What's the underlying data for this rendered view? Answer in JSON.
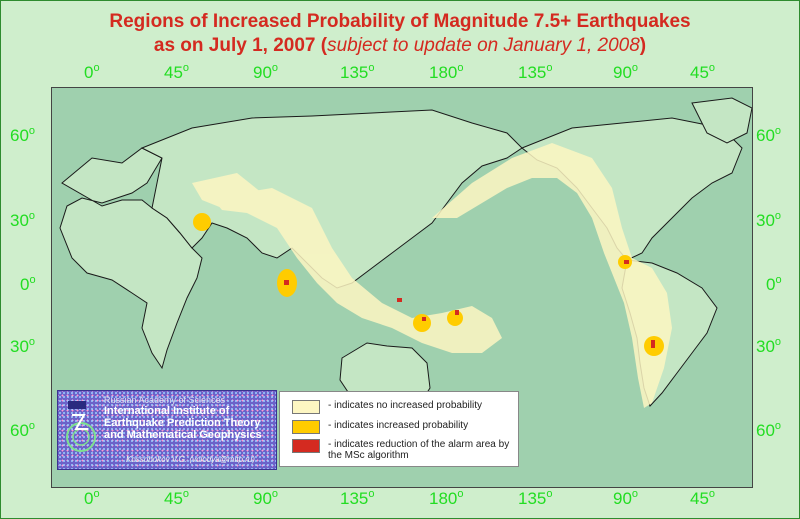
{
  "title": {
    "line1": "Regions of Increased Probability of Magnitude 7.5+ Earthquakes",
    "line2_main": "as on July 1, 2007 (",
    "line2_note": "subject to update on January 1, 2008",
    "line2_end": ")"
  },
  "longitude_labels": [
    "0",
    "45",
    "90",
    "135",
    "180",
    "135",
    "90",
    "45"
  ],
  "latitude_labels": [
    "60",
    "30",
    "0",
    "30",
    "60"
  ],
  "degree_symbol": "o",
  "institute": {
    "academy": "Russian Academy of Sciences",
    "name_line1": "International Institute of",
    "name_line2": "Earthquake Prediction Theory",
    "name_line3": "and Mathematical Geophysics",
    "author": "Kossobokov V.G. (volodya@mitp.ru)"
  },
  "legend": {
    "items": [
      {
        "label": "- indicates no increased probability",
        "color": "#fdf6c2"
      },
      {
        "label": "- indicates increased probability",
        "color": "#ffcc00"
      },
      {
        "label": "- indicates reduction of the alarm area by the MSc algorithm",
        "color": "#d42a20"
      }
    ]
  },
  "colors": {
    "ocean": "#9fd0ae",
    "land": "#c4e6c4",
    "no_increase": "#fdf6c2",
    "increase": "#ffcc00",
    "reduction": "#d42a20",
    "labels": "#22dd22",
    "title": "#d42a20"
  }
}
